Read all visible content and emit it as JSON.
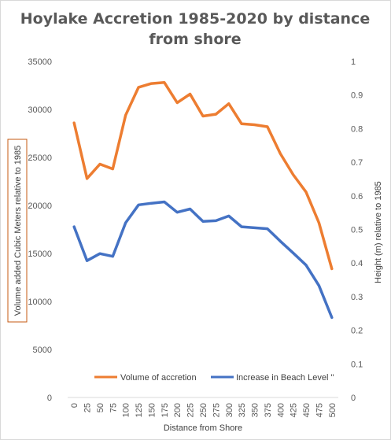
{
  "chart_data": {
    "type": "line",
    "title_lines": [
      "Hoylake  Accretion 1985-2020 by distance",
      "from shore"
    ],
    "xlabel": "Distance from Shore",
    "ylabel_left": "Volume added Cubic Meters relative to 1985",
    "ylabel_right": "Height (m) relative to 1985",
    "categories": [
      "0",
      "25",
      "50",
      "75",
      "100",
      "125",
      "150",
      "175",
      "200",
      "225",
      "250",
      "275",
      "300",
      "325",
      "350",
      "375",
      "400",
      "425",
      "450",
      "475",
      "500"
    ],
    "y_left": {
      "lim": [
        0,
        35000
      ],
      "ticks": [
        0,
        5000,
        10000,
        15000,
        20000,
        25000,
        30000,
        35000
      ],
      "tick_labels": [
        "0",
        "5000",
        "10000",
        "15000",
        "20000",
        "25000",
        "30000",
        "35000"
      ]
    },
    "y_right": {
      "lim": [
        0,
        1
      ],
      "ticks": [
        0,
        0.1,
        0.2,
        0.3,
        0.4,
        0.5,
        0.6,
        0.7,
        0.8,
        0.9,
        1
      ],
      "tick_labels": [
        "0",
        "0.1",
        "0.2",
        "0.3",
        "0.4",
        "0.5",
        "0.6",
        "0.7",
        "0.8",
        "0.9",
        "1"
      ]
    },
    "grid": false,
    "legend_position": "bottom",
    "series": [
      {
        "name": "Volume of accretion",
        "axis": "left",
        "color": "#ed7d31",
        "values": [
          28600,
          22800,
          24300,
          23800,
          29400,
          32300,
          32700,
          32800,
          30700,
          31600,
          29300,
          29500,
          30600,
          28500,
          28400,
          28200,
          25400,
          23200,
          21400,
          18200,
          13400
        ]
      },
      {
        "name": "Increase in Beach Level \"",
        "axis": "right",
        "color": "#4472c4",
        "values": [
          0.508,
          0.407,
          0.428,
          0.42,
          0.52,
          0.573,
          0.578,
          0.582,
          0.551,
          0.561,
          0.524,
          0.526,
          0.54,
          0.508,
          0.505,
          0.502,
          0.465,
          0.43,
          0.394,
          0.333,
          0.238
        ]
      }
    ]
  }
}
